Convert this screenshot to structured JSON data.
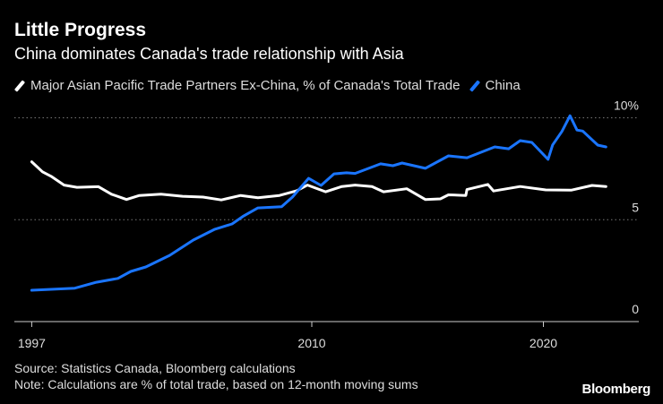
{
  "header": {
    "title": "Little Progress",
    "subtitle": "China dominates Canada's trade relationship with Asia"
  },
  "footer": {
    "source": "Source: Statistics Canada, Bloomberg calculations",
    "note": "Note: Calculations are % of total trade, based on 12-month moving sums",
    "logo": "Bloomberg"
  },
  "chart_data": {
    "type": "line",
    "title": "Little Progress",
    "subtitle": "China dominates Canada's trade relationship with Asia",
    "xlabel": "",
    "ylabel": "",
    "x_ticks": [
      1997,
      2010,
      2020
    ],
    "x_tick_labels": [
      "1997",
      "2010",
      "2020"
    ],
    "y_ticks": [
      0,
      5,
      10
    ],
    "y_tick_labels": [
      "0",
      "5",
      "10%"
    ],
    "ylim": [
      0,
      10
    ],
    "grid": "horizontal dotted",
    "legend": "top-left",
    "series": [
      {
        "name": "Major Asian Pacific Trade Partners Ex-China, % of Canada's Total Trade",
        "color": "#ffffff",
        "x": [
          1997.0,
          1997.5,
          1997.9,
          1998.5,
          1999.1,
          2000.1,
          2000.7,
          2001.4,
          2002.0,
          2003.0,
          2004.0,
          2004.95,
          2005.8,
          2006.7,
          2007.5,
          2008.5,
          2009.3,
          2009.8,
          2010.6,
          2011.3,
          2011.87,
          2012.6,
          2013.1,
          2014.1,
          2014.9,
          2015.55,
          2015.9,
          2016.65,
          2016.7,
          2017.6,
          2017.85,
          2019.0,
          2020.1,
          2021.2,
          2022.1,
          2022.7
        ],
        "y": [
          7.84,
          7.35,
          7.13,
          6.7,
          6.59,
          6.62,
          6.25,
          5.99,
          6.19,
          6.25,
          6.15,
          6.11,
          5.97,
          6.19,
          6.08,
          6.19,
          6.42,
          6.7,
          6.37,
          6.63,
          6.7,
          6.63,
          6.37,
          6.52,
          5.99,
          6.02,
          6.22,
          6.19,
          6.48,
          6.73,
          6.41,
          6.63,
          6.46,
          6.45,
          6.68,
          6.63
        ]
      },
      {
        "name": "China",
        "color": "#1a75ff",
        "x": [
          1997.0,
          1999.0,
          2000.0,
          2001.0,
          2001.6,
          2002.3,
          2003.4,
          2004.5,
          2005.5,
          2006.3,
          2006.8,
          2007.5,
          2008.6,
          2009.1,
          2009.85,
          2010.4,
          2010.96,
          2011.5,
          2011.87,
          2012.97,
          2013.5,
          2013.9,
          2014.9,
          2015.9,
          2016.7,
          2017.9,
          2018.5,
          2019.0,
          2019.5,
          2020.2,
          2020.4,
          2020.8,
          2021.15,
          2021.45,
          2021.7,
          2022.35,
          2022.7
        ],
        "y": [
          1.54,
          1.64,
          1.93,
          2.12,
          2.46,
          2.68,
          3.25,
          4.0,
          4.53,
          4.79,
          5.16,
          5.58,
          5.64,
          6.11,
          7.03,
          6.68,
          7.25,
          7.3,
          7.27,
          7.74,
          7.65,
          7.78,
          7.52,
          8.13,
          8.04,
          8.57,
          8.48,
          8.88,
          8.79,
          7.96,
          8.67,
          9.33,
          10.1,
          9.4,
          9.35,
          8.66,
          8.57
        ]
      }
    ]
  }
}
